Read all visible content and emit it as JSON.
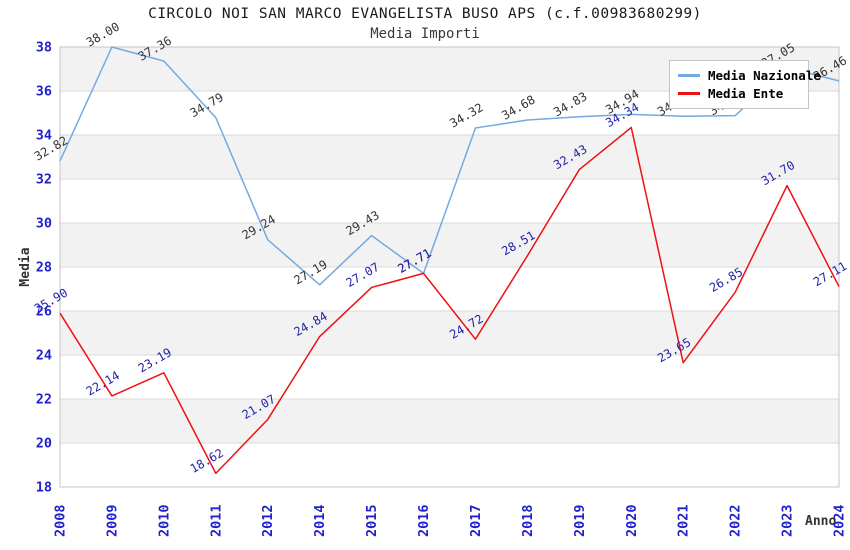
{
  "chart_data": {
    "type": "line",
    "title": "CIRCOLO NOI SAN MARCO EVANGELISTA BUSO APS (c.f.00983680299)",
    "subtitle": "Media Importi",
    "xlabel": "Anno",
    "ylabel": "Media",
    "ylim": [
      18,
      38
    ],
    "ytick_step": 2,
    "grid": {
      "band_fill": "#f2f2f2",
      "line_color": "#d9d9d9",
      "spine_color": "#c6c6c6",
      "bands_on": true
    },
    "tick_color": "#2222cc",
    "legend_position": "top-right",
    "categories": [
      "2008",
      "2009",
      "2010",
      "2011",
      "2012",
      "2014",
      "2015",
      "2016",
      "2017",
      "2018",
      "2019",
      "2020",
      "2021",
      "2022",
      "2023",
      "2024"
    ],
    "series": [
      {
        "name": "Media Nazionale",
        "color": "#74a9e2",
        "label_color": "#333333",
        "values": [
          32.82,
          38.0,
          37.36,
          34.79,
          29.24,
          27.19,
          29.43,
          27.71,
          34.32,
          34.68,
          34.83,
          34.94,
          34.85,
          34.88,
          37.05,
          36.46
        ]
      },
      {
        "name": "Media Ente",
        "color": "#ee1111",
        "label_color": "#2222aa",
        "values": [
          25.9,
          22.14,
          23.19,
          18.62,
          21.07,
          24.84,
          27.07,
          27.71,
          24.72,
          28.51,
          32.43,
          34.34,
          23.65,
          26.85,
          31.7,
          27.11
        ]
      }
    ]
  }
}
